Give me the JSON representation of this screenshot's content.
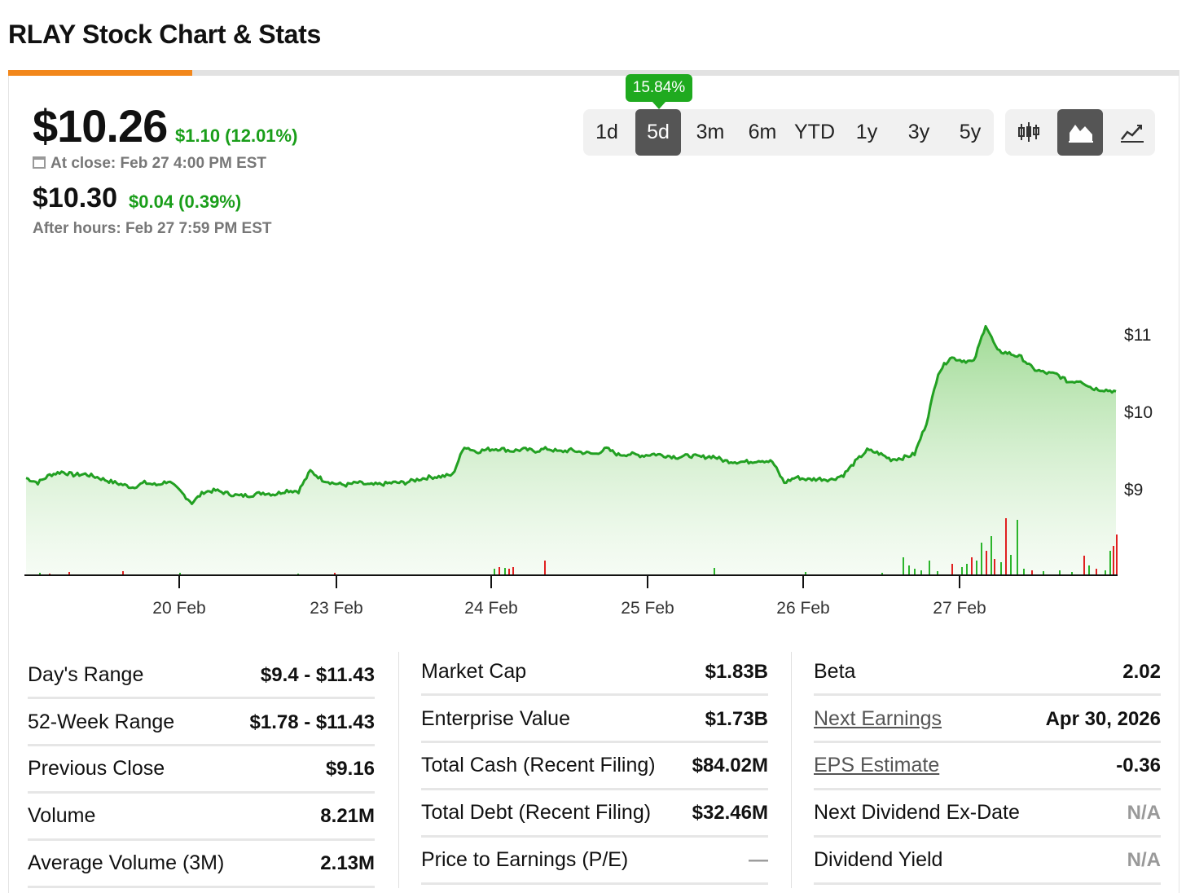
{
  "page_title": "RLAY Stock Chart & Stats",
  "quote": {
    "price": "$10.26",
    "change": "$1.10 (12.01%)",
    "close_label": "At close: Feb 27 4:00 PM EST",
    "after_hours_price": "$10.30",
    "after_hours_change": "$0.04 (0.39%)",
    "after_hours_label": "After hours: Feb 27 7:59 PM EST"
  },
  "range_tabs": {
    "badge": "15.84%",
    "selected": "5d",
    "items": [
      "1d",
      "5d",
      "3m",
      "6m",
      "YTD",
      "1y",
      "3y",
      "5y"
    ]
  },
  "chart_type_tabs": {
    "selected": "area",
    "items": [
      "candlestick-icon",
      "area-chart-icon",
      "line-chart-icon"
    ]
  },
  "colors": {
    "accent": "#f2871b",
    "positive": "#1a9e1a",
    "line": "#22a022",
    "area": "#9bd98f",
    "volume_up": "#2bb52b",
    "volume_down": "#e02020"
  },
  "chart_data": {
    "type": "area",
    "x_ticks": [
      "20 Feb",
      "23 Feb",
      "24 Feb",
      "25 Feb",
      "26 Feb",
      "27 Feb"
    ],
    "y_ticks": [
      "$11",
      "$10",
      "$9"
    ],
    "ylim": [
      7.9,
      11.4
    ],
    "series": [
      {
        "values": [
          9.14,
          9.08,
          9.18,
          9.22,
          9.18,
          9.19,
          9.15,
          9.1,
          9.06,
          9.02,
          9.08,
          9.05,
          9.1,
          8.97,
          8.82,
          8.96,
          8.98,
          8.94,
          8.91,
          8.92,
          8.95,
          8.93,
          8.98,
          8.97,
          9.23,
          9.12,
          9.07,
          9.05,
          9.08,
          9.05,
          9.06,
          9.08,
          9.08,
          9.12,
          9.15,
          9.16,
          9.18,
          9.55,
          9.48,
          9.51,
          9.52,
          9.49,
          9.51,
          9.49,
          9.52,
          9.48,
          9.5,
          9.47,
          9.45,
          9.52,
          9.44,
          9.45,
          9.43,
          9.45,
          9.43,
          9.41,
          9.43,
          9.41,
          9.42,
          9.36,
          9.35,
          9.35,
          9.37,
          9.35,
          9.08,
          9.15,
          9.12,
          9.13,
          9.12,
          9.18,
          9.35,
          9.5,
          9.46,
          9.38,
          9.4,
          9.45,
          9.85,
          10.5,
          10.7,
          10.66,
          10.64,
          11.12,
          10.78,
          10.75,
          10.7,
          10.55,
          10.5,
          10.48,
          10.38,
          10.4,
          10.3,
          10.28,
          10.26
        ]
      }
    ],
    "volume_note": "Volume bars (green up / red down), spike during Feb 27 session"
  },
  "stats": {
    "col1": [
      {
        "label": "Day's Range",
        "value": "$9.4 - $11.43"
      },
      {
        "label": "52-Week Range",
        "value": "$1.78 - $11.43"
      },
      {
        "label": "Previous Close",
        "value": "$9.16"
      },
      {
        "label": "Volume",
        "value": "8.21M"
      },
      {
        "label": "Average Volume (3M)",
        "value": "2.13M"
      }
    ],
    "col2": [
      {
        "label": "Market Cap",
        "value": "$1.83B"
      },
      {
        "label": "Enterprise Value",
        "value": "$1.73B"
      },
      {
        "label": "Total Cash (Recent Filing)",
        "value": "$84.02M"
      },
      {
        "label": "Total Debt (Recent Filing)",
        "value": "$32.46M"
      },
      {
        "label": "Price to Earnings (P/E)",
        "value": "—"
      }
    ],
    "col3": [
      {
        "label": "Beta",
        "value": "2.02"
      },
      {
        "label": "Next Earnings",
        "value": "Apr 30, 2026"
      },
      {
        "label": "EPS Estimate",
        "value": "-0.36"
      },
      {
        "label": "Next Dividend Ex-Date",
        "value": "N/A"
      },
      {
        "label": "Dividend Yield",
        "value": "N/A"
      }
    ]
  }
}
